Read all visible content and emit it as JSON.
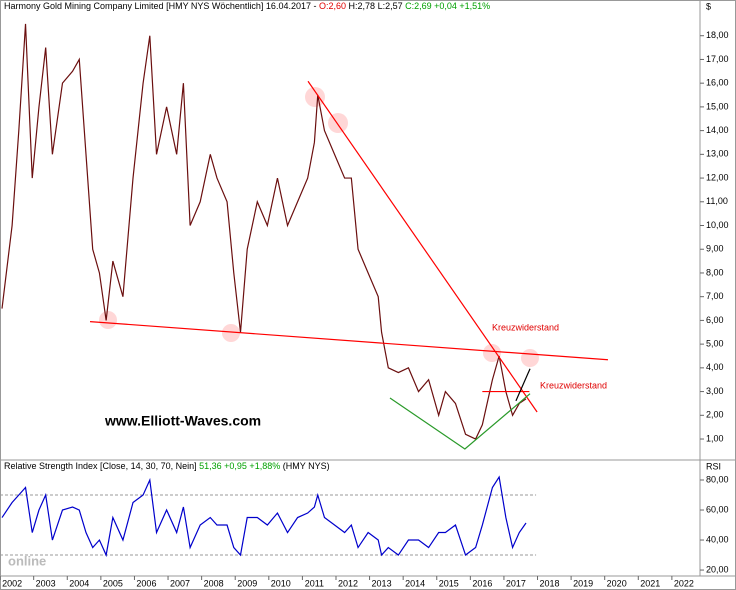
{
  "chart_data": [
    {
      "type": "line",
      "title": "Harmony Gold Mining Company Limited [HMY NYS  Wöchentlich] 16.04.2017 -",
      "ohlc": [
        "O:2,60",
        "H:2,78  L:2,57",
        "C:2,69 +0,04 +1,51%"
      ],
      "y_unit": "$",
      "x": [
        2001.7,
        2002.0,
        2002.2,
        2002.4,
        2002.6,
        2002.8,
        2003.0,
        2003.2,
        2003.5,
        2003.8,
        2004.0,
        2004.2,
        2004.4,
        2004.6,
        2004.8,
        2005.0,
        2005.3,
        2005.6,
        2005.9,
        2006.1,
        2006.3,
        2006.6,
        2006.9,
        2007.1,
        2007.3,
        2007.6,
        2007.9,
        2008.1,
        2008.4,
        2008.6,
        2008.8,
        2009.0,
        2009.3,
        2009.6,
        2009.9,
        2010.2,
        2010.5,
        2010.8,
        2011.0,
        2011.1,
        2011.3,
        2011.6,
        2011.9,
        2012.1,
        2012.3,
        2012.6,
        2012.9,
        2013.0,
        2013.2,
        2013.5,
        2013.8,
        2014.1,
        2014.4,
        2014.7,
        2014.9,
        2015.2,
        2015.5,
        2015.8,
        2016.0,
        2016.3,
        2016.5,
        2016.7,
        2016.9,
        2017.1,
        2017.3
      ],
      "series": [
        {
          "name": "HMY NYS",
          "color": "#6b0f0f",
          "values": [
            6.5,
            10,
            14,
            18.5,
            12,
            15,
            17.5,
            13,
            16,
            16.5,
            17,
            13,
            9,
            8,
            6,
            8.5,
            7,
            12,
            16,
            18,
            13,
            15,
            13,
            16,
            10,
            11,
            13,
            12,
            11,
            8,
            5.5,
            9,
            11,
            10,
            12,
            10,
            11,
            12,
            13.5,
            15.5,
            14,
            13,
            12,
            12,
            9,
            8,
            7,
            5.5,
            4,
            3.8,
            4,
            3,
            3.5,
            2,
            3,
            2.5,
            1.2,
            1,
            1.6,
            3.5,
            4.5,
            3,
            2,
            2.5,
            2.69
          ]
        }
      ],
      "xlim": [
        2001.64,
        2022.48
      ],
      "ylim": [
        0.2,
        19.0
      ],
      "yticks": [
        {
          "value": 1,
          "label": "1,00"
        },
        {
          "value": 2,
          "label": "2,00"
        },
        {
          "value": 3,
          "label": "3,00"
        },
        {
          "value": 4,
          "label": "4,00"
        },
        {
          "value": 5,
          "label": "5,00"
        },
        {
          "value": 6,
          "label": "6,00"
        },
        {
          "value": 7,
          "label": "7,00"
        },
        {
          "value": 8,
          "label": "8,00"
        },
        {
          "value": 9,
          "label": "9,00"
        },
        {
          "value": 10,
          "label": "10,00"
        },
        {
          "value": 11,
          "label": "11,00"
        },
        {
          "value": 12,
          "label": "12,00"
        },
        {
          "value": 13,
          "label": "13,00"
        },
        {
          "value": 14,
          "label": "14,00"
        },
        {
          "value": 15,
          "label": "15,00"
        },
        {
          "value": 16,
          "label": "16,00"
        },
        {
          "value": 17,
          "label": "17,00"
        },
        {
          "value": 18,
          "label": "18,00"
        }
      ],
      "trendlines": [
        {
          "color": "#ff0000",
          "x": [
            2010.81,
            2017.63
          ],
          "y": [
            16.08,
            2.14
          ]
        },
        {
          "color": "#ff0000",
          "x": [
            2004.32,
            2019.74
          ],
          "y": [
            5.95,
            4.34
          ]
        },
        {
          "color": "#ff0000",
          "x": [
            2016.0,
            2017.4
          ],
          "y": [
            3.0,
            3.0
          ]
        },
        {
          "color": "#2a9a2a",
          "x": [
            2013.25,
            2015.48,
            2017.42
          ],
          "y": [
            2.73,
            0.58,
            2.91
          ]
        },
        {
          "color": "#000000",
          "x": [
            2017.0,
            2017.42
          ],
          "y": [
            2.61,
            3.96
          ]
        }
      ],
      "annotations": [
        "Kreuzwiderstand",
        "Kreuzwiderstand",
        "www.Elliott-Waves.com"
      ]
    },
    {
      "type": "line",
      "title": "Relative Strength Index [Close, 14, 30, 70, Nein]",
      "title_change": "51,36 +0,95 +1,88%",
      "title_suffix": "(HMY NYS)",
      "y_unit": "RSI",
      "watermark": "online",
      "x": [
        2001.7,
        2002.0,
        2002.2,
        2002.4,
        2002.6,
        2002.8,
        2003.0,
        2003.2,
        2003.5,
        2003.8,
        2004.0,
        2004.2,
        2004.4,
        2004.6,
        2004.8,
        2005.0,
        2005.3,
        2005.6,
        2005.9,
        2006.1,
        2006.3,
        2006.6,
        2006.9,
        2007.1,
        2007.3,
        2007.6,
        2007.9,
        2008.1,
        2008.4,
        2008.6,
        2008.8,
        2009.0,
        2009.3,
        2009.6,
        2009.9,
        2010.2,
        2010.5,
        2010.8,
        2011.0,
        2011.1,
        2011.3,
        2011.6,
        2011.9,
        2012.1,
        2012.3,
        2012.6,
        2012.9,
        2013.0,
        2013.2,
        2013.5,
        2013.8,
        2014.1,
        2014.4,
        2014.7,
        2014.9,
        2015.2,
        2015.5,
        2015.8,
        2016.0,
        2016.3,
        2016.5,
        2016.7,
        2016.9,
        2017.1,
        2017.3
      ],
      "series": [
        {
          "name": "RSI",
          "color": "#0000cc",
          "values": [
            55,
            65,
            70,
            75,
            45,
            60,
            70,
            40,
            60,
            62,
            60,
            45,
            35,
            40,
            30,
            55,
            40,
            65,
            70,
            80,
            45,
            60,
            45,
            62,
            35,
            50,
            55,
            50,
            50,
            35,
            30,
            55,
            55,
            50,
            58,
            45,
            55,
            58,
            62,
            70,
            55,
            50,
            45,
            50,
            35,
            45,
            40,
            30,
            35,
            30,
            40,
            40,
            35,
            45,
            45,
            50,
            30,
            35,
            50,
            75,
            82,
            55,
            35,
            45,
            51.36
          ]
        }
      ],
      "levels": [
        30,
        70
      ],
      "xlim": [
        2001.64,
        2022.48
      ],
      "ylim": [
        16.7,
        92
      ],
      "yticks": [
        {
          "value": 20,
          "label": "20,00"
        },
        {
          "value": 40,
          "label": "40,00"
        },
        {
          "value": 60,
          "label": "60,00"
        },
        {
          "value": 80,
          "label": "80,00"
        }
      ],
      "xticks": [
        2002,
        2003,
        2004,
        2005,
        2006,
        2007,
        2008,
        2009,
        2010,
        2011,
        2012,
        2013,
        2014,
        2015,
        2016,
        2017,
        2018,
        2019,
        2020,
        2021,
        2022
      ]
    }
  ]
}
